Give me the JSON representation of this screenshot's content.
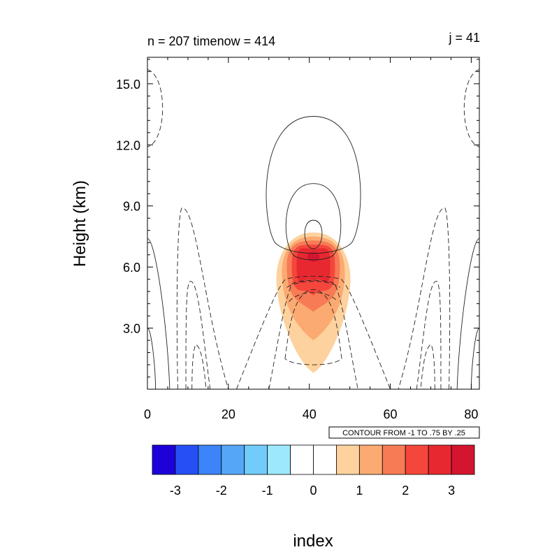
{
  "chart_data": {
    "type": "contour",
    "title_left": "n = 207 timenow = 414",
    "title_right": "j = 41",
    "ylabel": "Height (km)",
    "xlabel": "index",
    "xlim": [
      0,
      82
    ],
    "ylim": [
      0,
      16.3
    ],
    "x_ticks": [
      0,
      20,
      40,
      60,
      80
    ],
    "x_tick_labels": [
      "0",
      "20",
      "40",
      "60",
      "80"
    ],
    "y_ticks": [
      3,
      6,
      9,
      12,
      15
    ],
    "y_tick_labels": [
      "3.0",
      "6.0",
      "9.0",
      "12.0",
      "15.0"
    ],
    "contour_info": "CONTOUR FROM -1 TO .75 BY .25",
    "colorbar": {
      "colors": [
        "#1e00d8",
        "#2650f5",
        "#3c84f7",
        "#55a6f7",
        "#72ccfb",
        "#9ee8fd",
        "#ffffff",
        "#ffffff",
        "#fdd29e",
        "#fbaa72",
        "#f77b55",
        "#f5463c",
        "#e72830",
        "#d41530"
      ],
      "ticks": [
        -3,
        -2,
        -1,
        0,
        1,
        2,
        3
      ],
      "tick_labels": [
        "-3",
        "-2",
        "-1",
        "0",
        "1",
        "2",
        "3"
      ]
    },
    "fill_regions": [
      {
        "level": 1,
        "color": "#fdd29e",
        "top": 7.7,
        "bottom": 0.8
      },
      {
        "level": 2,
        "color": "#fbaa72",
        "top": 7.5,
        "bottom": 2.4
      },
      {
        "level": 3,
        "color": "#f77b55",
        "top": 7.3,
        "bottom": 3.8
      },
      {
        "level": 4,
        "color": "#f5463c",
        "top": 7.1,
        "bottom": 4.6
      },
      {
        "level": 5,
        "color": "#e72830",
        "top": 6.9,
        "bottom": 5.3
      }
    ]
  }
}
